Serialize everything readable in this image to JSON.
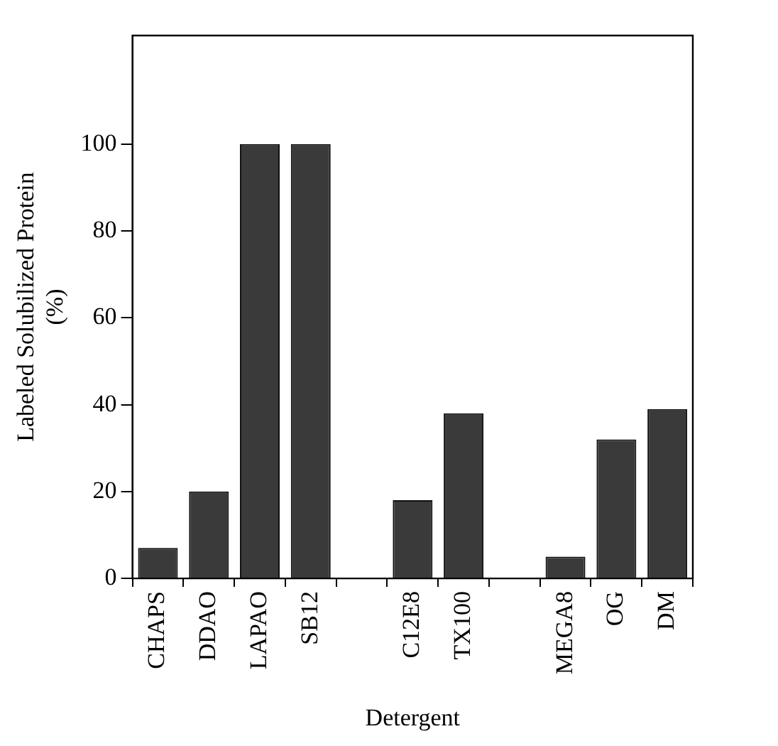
{
  "chart_data": {
    "type": "bar",
    "xlabel": "Detergent",
    "ylabel": "Labeled Solubilized Protein\n(%)",
    "categories": [
      "CHAPS",
      "DDAO",
      "LAPAO",
      "SB12",
      null,
      "C12E8",
      "TX100",
      null,
      "MEGA8",
      "OG",
      "DM"
    ],
    "values": [
      7,
      20,
      100,
      100,
      null,
      18,
      38,
      null,
      5,
      32,
      39
    ],
    "color": "#3a3a3a",
    "ylim": [
      0,
      125
    ],
    "yticks": [
      0,
      20,
      40,
      60,
      80,
      100
    ],
    "grid": false,
    "legend": false
  }
}
